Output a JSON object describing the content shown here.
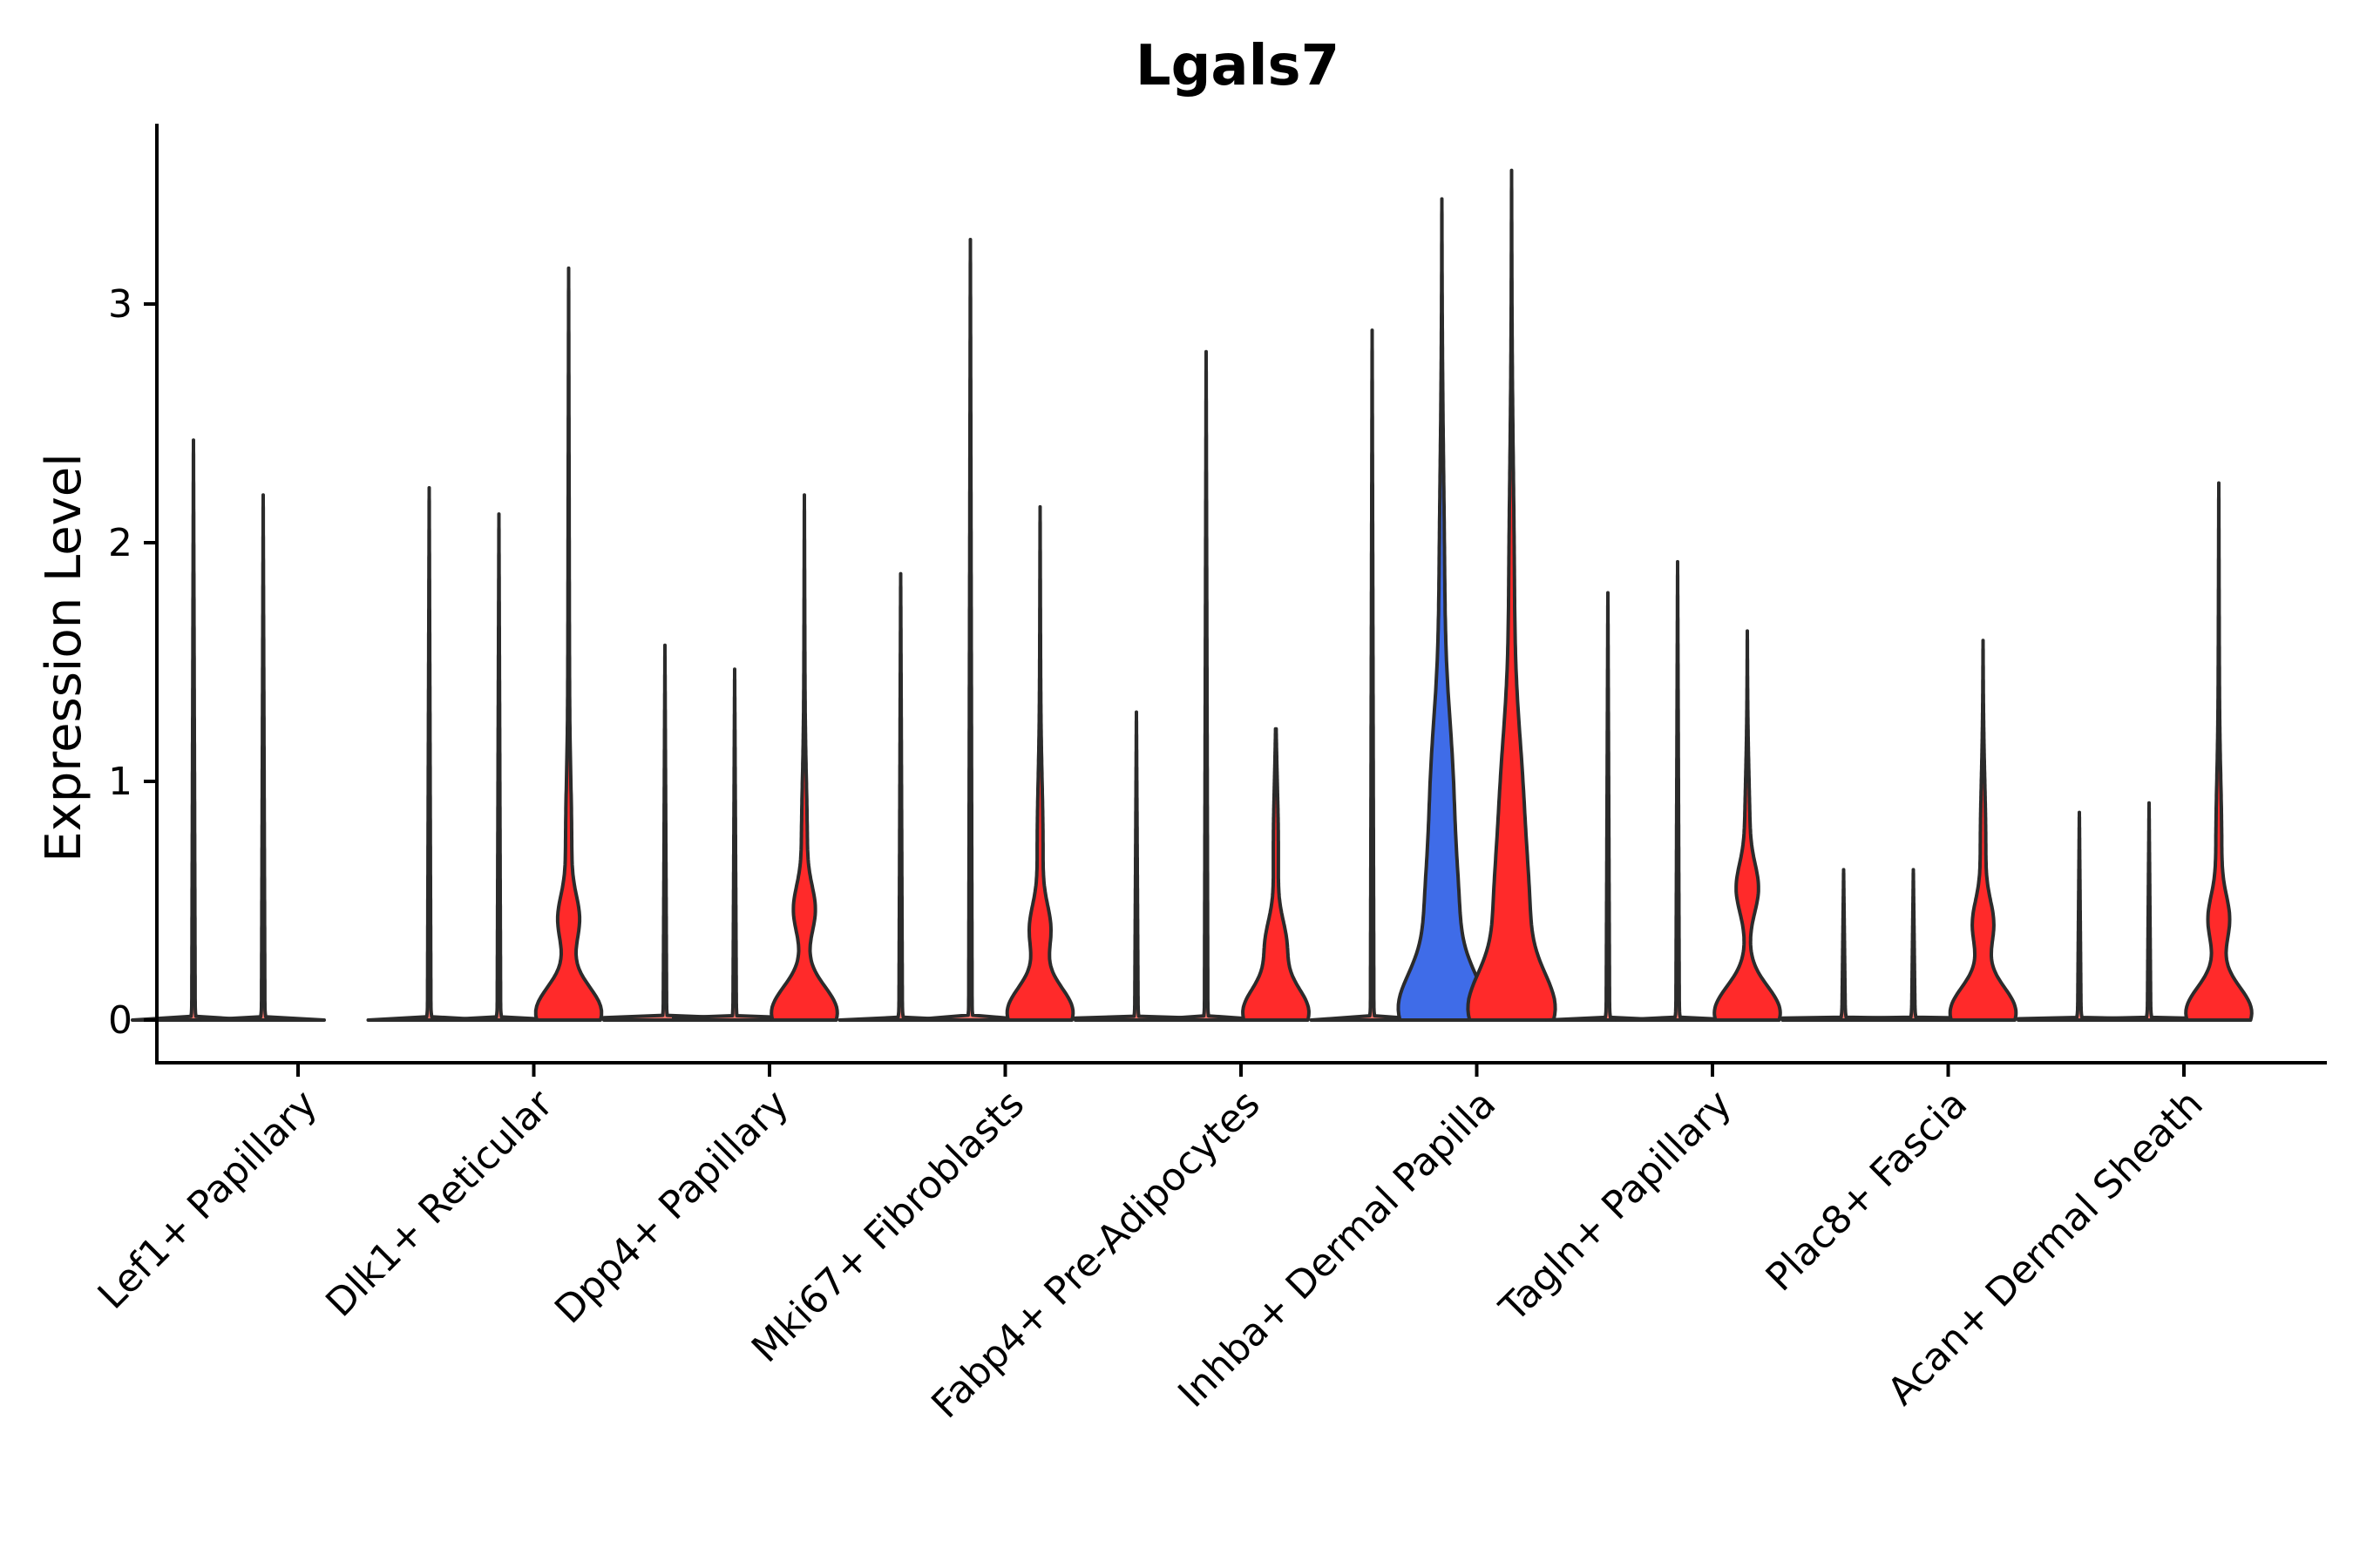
{
  "chart_data": {
    "type": "violin",
    "title": "Lgals7",
    "xlabel": "",
    "ylabel": "Expression Level",
    "ylim": [
      -0.18,
      3.75
    ],
    "yticks": [
      0,
      1,
      2,
      3
    ],
    "groups_per_category": 3,
    "group_colors": [
      "#F8766D",
      "#3F6CE8",
      "#FF2A2A"
    ],
    "categories": [
      "Lef1+ Papillary",
      "Dlk1+ Reticular",
      "Dpp4+ Papillary",
      "Mki67+ Fibroblasts",
      "Fabp4+ Pre-Adipocytes",
      "Inhba+ Dermal Papilla",
      "Tagln+ Papillary",
      "Plac8+ Fascia",
      "Acan+ Dermal Sheath"
    ],
    "violins": [
      {
        "category": 0,
        "slot": 0,
        "max": 2.43,
        "color": "#F8766D",
        "shape": "flat"
      },
      {
        "category": 0,
        "slot": 1,
        "max": 2.2,
        "color": "#F8766D",
        "shape": "flat"
      },
      {
        "category": 1,
        "slot": 0,
        "max": 2.23,
        "color": "#F8766D",
        "shape": "flat"
      },
      {
        "category": 1,
        "slot": 1,
        "max": 2.12,
        "color": "#F8766D",
        "shape": "flat"
      },
      {
        "category": 1,
        "slot": 2,
        "max": 3.15,
        "color": "#FF2A2A",
        "shape": "low-bump",
        "bump": 0.42
      },
      {
        "category": 2,
        "slot": 0,
        "max": 1.57,
        "color": "#F8766D",
        "shape": "flat"
      },
      {
        "category": 2,
        "slot": 1,
        "max": 1.47,
        "color": "#F8766D",
        "shape": "flat"
      },
      {
        "category": 2,
        "slot": 2,
        "max": 2.2,
        "color": "#FF2A2A",
        "shape": "low-bump",
        "bump": 0.46
      },
      {
        "category": 3,
        "slot": 0,
        "max": 1.87,
        "color": "#F8766D",
        "shape": "flat"
      },
      {
        "category": 3,
        "slot": 1,
        "max": 3.27,
        "color": "#F8766D",
        "shape": "flat"
      },
      {
        "category": 3,
        "slot": 2,
        "max": 2.15,
        "color": "#FF2A2A",
        "shape": "low-bump",
        "bump": 0.38
      },
      {
        "category": 4,
        "slot": 0,
        "max": 1.29,
        "color": "#F8766D",
        "shape": "flat"
      },
      {
        "category": 4,
        "slot": 1,
        "max": 2.8,
        "color": "#F8766D",
        "shape": "flat"
      },
      {
        "category": 4,
        "slot": 2,
        "max": 1.22,
        "color": "#FF2A2A",
        "shape": "low-bump",
        "bump": 0.32
      },
      {
        "category": 5,
        "slot": 0,
        "max": 2.89,
        "color": "#F8766D",
        "shape": "flat"
      },
      {
        "category": 5,
        "slot": 1,
        "max": 3.44,
        "color": "#3F6CE8",
        "shape": "wide",
        "bump": 0.95
      },
      {
        "category": 5,
        "slot": 2,
        "max": 3.56,
        "color": "#FF2A2A",
        "shape": "wide",
        "bump": 0.9
      },
      {
        "category": 6,
        "slot": 0,
        "max": 1.79,
        "color": "#F8766D",
        "shape": "flat"
      },
      {
        "category": 6,
        "slot": 1,
        "max": 1.92,
        "color": "#F8766D",
        "shape": "flat"
      },
      {
        "category": 6,
        "slot": 2,
        "max": 1.63,
        "color": "#FF2A2A",
        "shape": "low-bump",
        "bump": 0.55
      },
      {
        "category": 7,
        "slot": 0,
        "max": 0.63,
        "color": "#F8766D",
        "shape": "flat"
      },
      {
        "category": 7,
        "slot": 1,
        "max": 0.63,
        "color": "#F8766D",
        "shape": "flat"
      },
      {
        "category": 7,
        "slot": 2,
        "max": 1.59,
        "color": "#FF2A2A",
        "shape": "low-bump",
        "bump": 0.4
      },
      {
        "category": 8,
        "slot": 0,
        "max": 0.87,
        "color": "#F8766D",
        "shape": "flat"
      },
      {
        "category": 8,
        "slot": 1,
        "max": 0.91,
        "color": "#F8766D",
        "shape": "flat"
      },
      {
        "category": 8,
        "slot": 2,
        "max": 2.25,
        "color": "#FF2A2A",
        "shape": "low-bump",
        "bump": 0.42
      }
    ]
  }
}
